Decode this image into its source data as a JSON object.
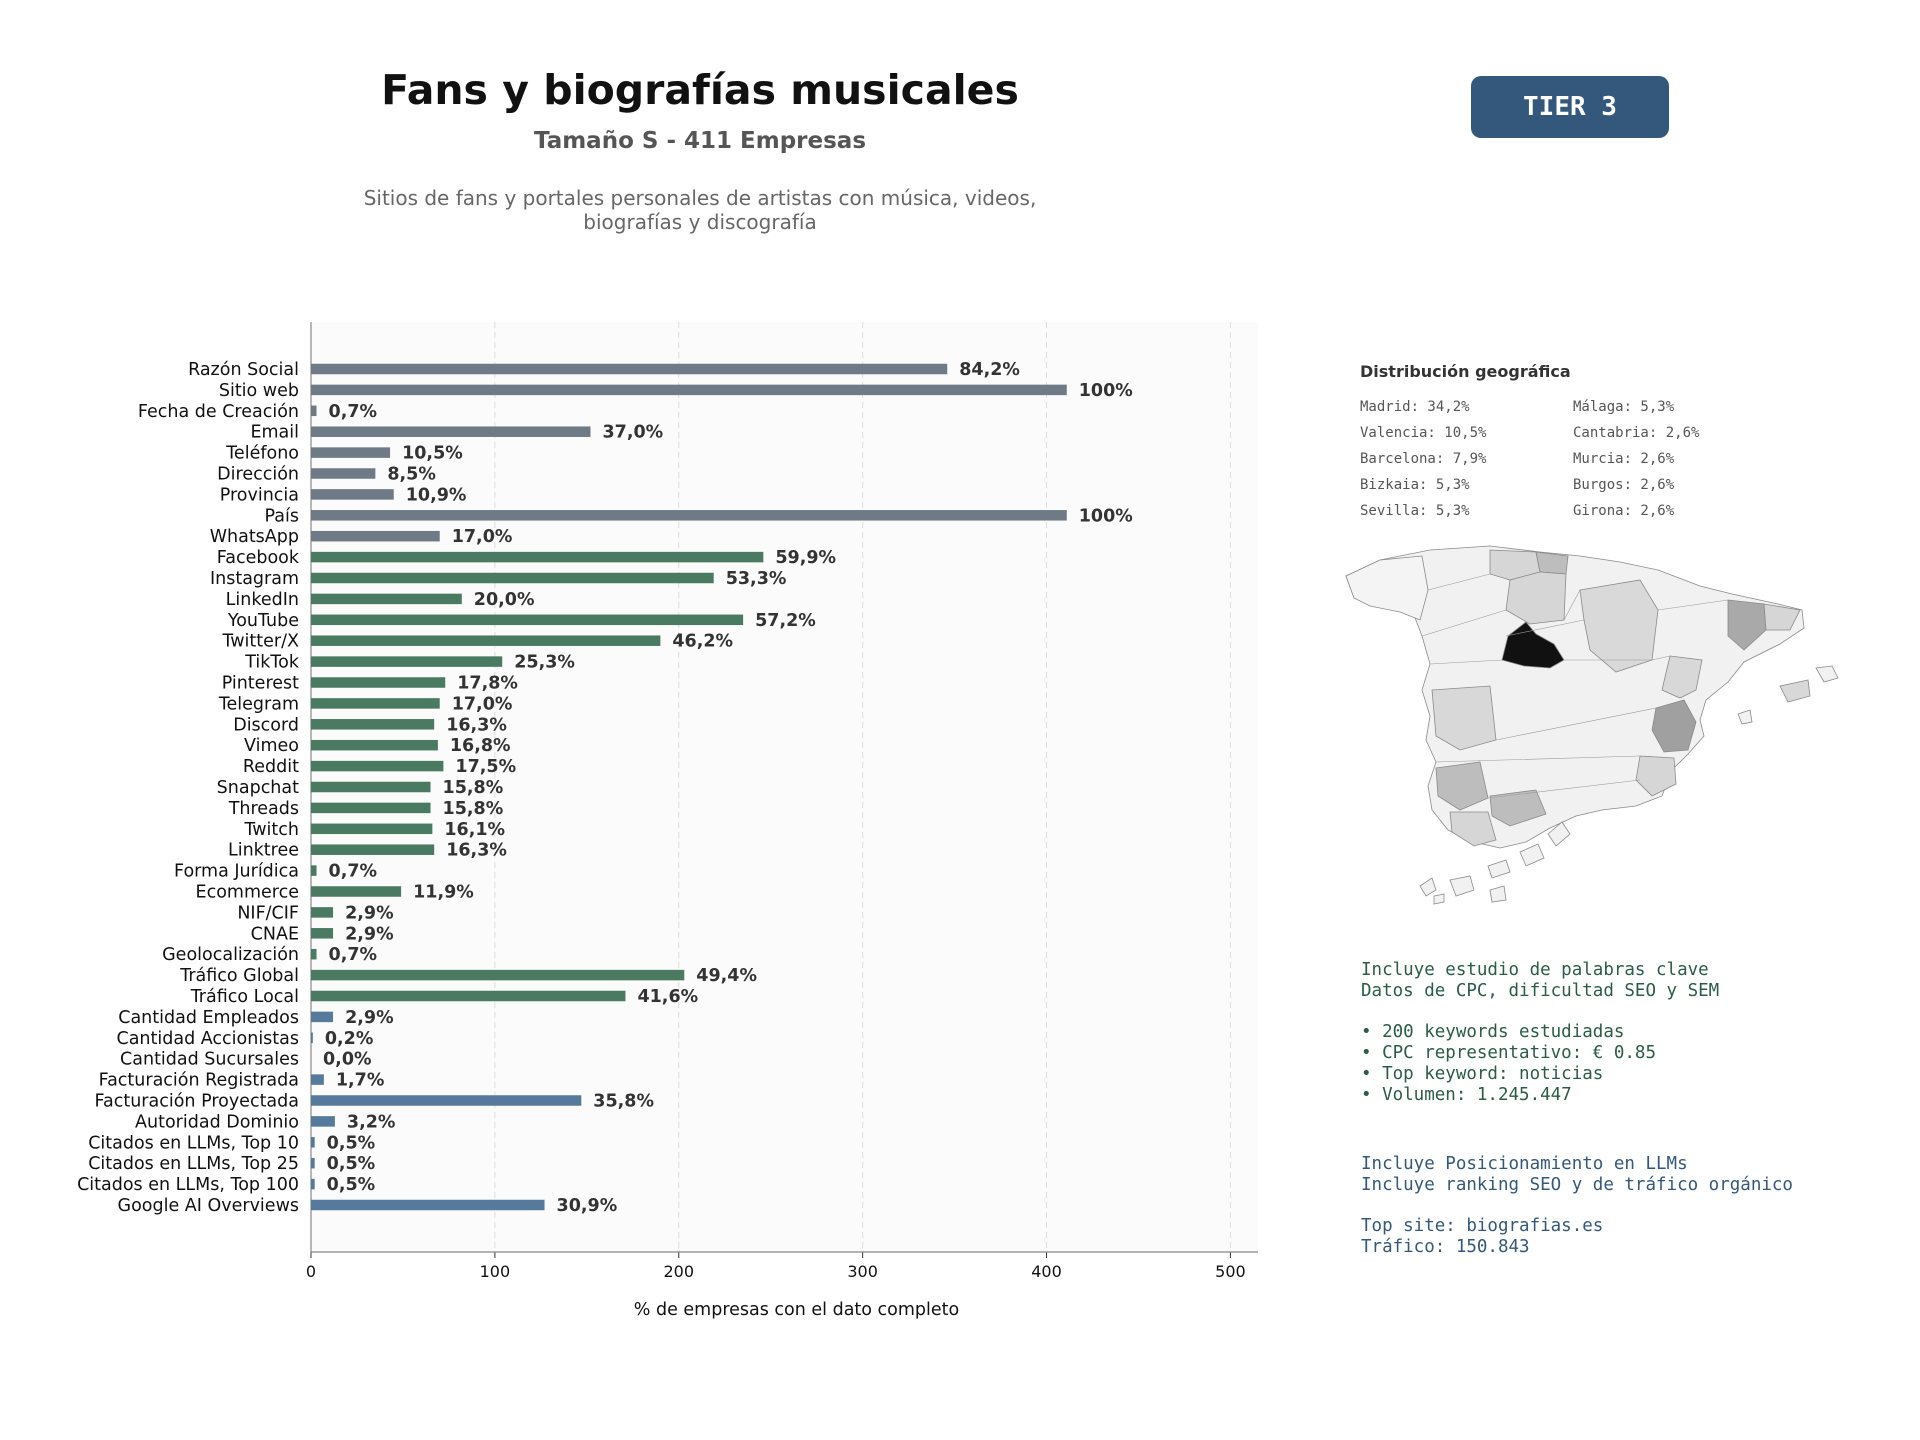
{
  "header": {
    "title": "Fans y biografías musicales",
    "subtitle": "Tamaño S - 411 Empresas",
    "description_line1": "Sitios de fans y portales personales de artistas con música, videos,",
    "description_line2": "biografías y discografía",
    "tier_label": "TIER 3"
  },
  "colors": {
    "contact": "#6e7a85",
    "social": "#4a7a62",
    "business": "#567a9b",
    "badge": "#34587c",
    "seo_text": "#2a5d45",
    "llm_text": "#34587c"
  },
  "chart_data": {
    "type": "bar",
    "orientation": "horizontal",
    "xlabel": "% de empresas con el dato completo",
    "xlim": [
      0,
      515
    ],
    "xticks": [
      0,
      100,
      200,
      300,
      400,
      500
    ],
    "grid": "x-dashed",
    "categories": [
      "Razón Social",
      "Sitio web",
      "Fecha de Creación",
      "Email",
      "Teléfono",
      "Dirección",
      "Provincia",
      "País",
      "WhatsApp",
      "Facebook",
      "Instagram",
      "LinkedIn",
      "YouTube",
      "Twitter/X",
      "TikTok",
      "Pinterest",
      "Telegram",
      "Discord",
      "Vimeo",
      "Reddit",
      "Snapchat",
      "Threads",
      "Twitch",
      "Linktree",
      "Forma Jurídica",
      "Ecommerce",
      "NIF/CIF",
      "CNAE",
      "Geolocalización",
      "Tráfico Global",
      "Tráfico Local",
      "Cantidad Empleados",
      "Cantidad Accionistas",
      "Cantidad Sucursales",
      "Facturación Registrada",
      "Facturación Proyectada",
      "Autoridad Dominio",
      "Citados en LLMs, Top 10",
      "Citados en LLMs, Top 25",
      "Citados en LLMs, Top 100",
      "Google AI Overviews"
    ],
    "values": [
      346,
      411,
      3,
      152,
      43,
      35,
      45,
      411,
      70,
      246,
      219,
      82,
      235,
      190,
      104,
      73,
      70,
      67,
      69,
      72,
      65,
      65,
      66,
      67,
      3,
      49,
      12,
      12,
      3,
      203,
      171,
      12,
      1,
      0,
      7,
      147,
      13,
      2,
      2,
      2,
      127
    ],
    "labels": [
      "84,2%",
      "100%",
      "0,7%",
      "37,0%",
      "10,5%",
      "8,5%",
      "10,9%",
      "100%",
      "17,0%",
      "59,9%",
      "53,3%",
      "20,0%",
      "57,2%",
      "46,2%",
      "25,3%",
      "17,8%",
      "17,0%",
      "16,3%",
      "16,8%",
      "17,5%",
      "15,8%",
      "15,8%",
      "16,1%",
      "16,3%",
      "0,7%",
      "11,9%",
      "2,9%",
      "2,9%",
      "0,7%",
      "49,4%",
      "41,6%",
      "2,9%",
      "0,2%",
      "0,0%",
      "1,7%",
      "35,8%",
      "3,2%",
      "0,5%",
      "0,5%",
      "0,5%",
      "30,9%"
    ],
    "groups": [
      "contact",
      "contact",
      "contact",
      "contact",
      "contact",
      "contact",
      "contact",
      "contact",
      "contact",
      "social",
      "social",
      "social",
      "social",
      "social",
      "social",
      "social",
      "social",
      "social",
      "social",
      "social",
      "social",
      "social",
      "social",
      "social",
      "social",
      "social",
      "social",
      "social",
      "social",
      "social",
      "social",
      "business",
      "business",
      "business",
      "business",
      "business",
      "business",
      "business",
      "business",
      "business",
      "business"
    ]
  },
  "geo": {
    "title": "Distribución geográfica",
    "items": [
      "Madrid: 34,2%",
      "Málaga: 5,3%",
      "Valencia: 10,5%",
      "Cantabria: 2,6%",
      "Barcelona: 7,9%",
      "Murcia: 2,6%",
      "Bizkaia: 5,3%",
      "Burgos: 2,6%",
      "Sevilla: 5,3%",
      "Girona: 2,6%"
    ]
  },
  "seo": {
    "line1": "Incluye estudio de palabras clave",
    "line2": "Datos de CPC, dificultad SEO y SEM",
    "bullet1": "• 200 keywords estudiadas",
    "bullet2": "• CPC representativo: € 0.85",
    "bullet3": "• Top keyword: noticias",
    "bullet4": "• Volumen: 1.245.447"
  },
  "llm": {
    "line1": "Incluye Posicionamiento en LLMs",
    "line2": "Incluye ranking SEO y de tráfico orgánico",
    "line3": "Top site: biografias.es",
    "line4": "Tráfico: 150.843"
  }
}
